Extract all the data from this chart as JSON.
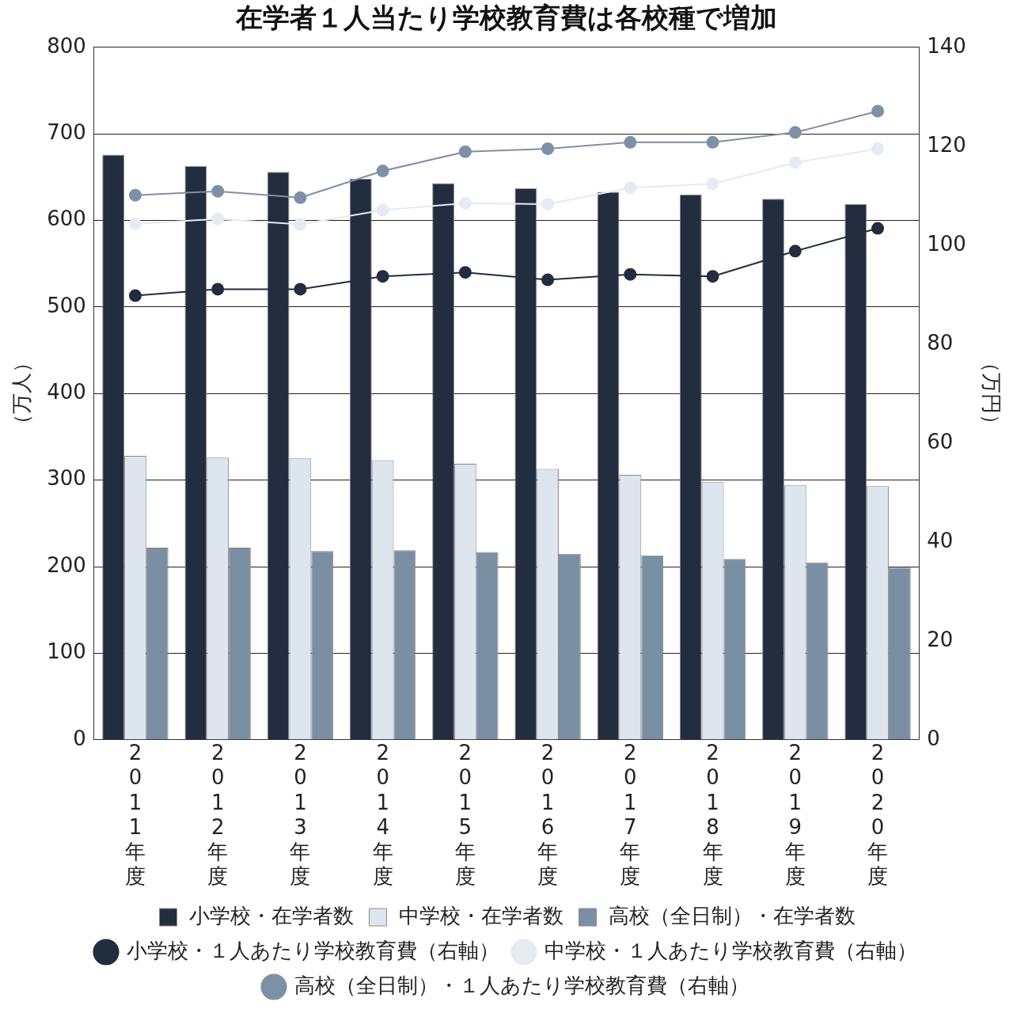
{
  "chart_data": {
    "type": "bar",
    "title": "在学者１人当たり学校教育費は各校種で増加",
    "ylabel": "（万人）",
    "y2label": "（万円）",
    "categories": [
      "2011年度",
      "2012年度",
      "2013年度",
      "2014年度",
      "2015年度",
      "2016年度",
      "2017年度",
      "2018年度",
      "2019年度",
      "2020年度"
    ],
    "series": [
      {
        "name": "小学校・在学者数",
        "color": "#222d3f",
        "values": [
          676,
          663,
          656,
          648,
          643,
          637,
          633,
          630,
          625,
          619
        ]
      },
      {
        "name": "中学校・在学者数",
        "color": "#dde6ef",
        "values": [
          328,
          326,
          325,
          323,
          319,
          313,
          306,
          298,
          294,
          293
        ]
      },
      {
        "name": "高校（全日制）・在学者数",
        "color": "#7b8fa3",
        "values": [
          222,
          222,
          218,
          219,
          217,
          215,
          213,
          209,
          205,
          199
        ]
      },
      {
        "name": "小学校・１人あたり学校教育費（右軸）",
        "type": "line",
        "axis": "y2",
        "color": "#222d3f",
        "values": [
          89.8,
          91.1,
          91.1,
          93.7,
          94.5,
          93.0,
          94.1,
          93.7,
          98.8,
          103.4
        ]
      },
      {
        "name": "中学校・１人あたり学校教育費（右軸）",
        "type": "line",
        "axis": "y2",
        "color": "#e4ebf2",
        "values": [
          104.3,
          105.3,
          104.2,
          107.1,
          108.5,
          108.3,
          111.6,
          112.4,
          116.7,
          119.5
        ]
      },
      {
        "name": "高校（全日制）・１人あたり学校教育費（右軸）",
        "type": "line",
        "axis": "y2",
        "color": "#7d91a6",
        "values": [
          110.1,
          110.9,
          109.6,
          115.0,
          118.9,
          119.5,
          120.8,
          120.8,
          122.8,
          127.1
        ]
      }
    ],
    "ylim": [
      0,
      800
    ],
    "yticks": [
      0,
      100,
      200,
      300,
      400,
      500,
      600,
      700,
      800
    ],
    "y2lim": [
      0,
      140
    ],
    "y2ticks": [
      0,
      20,
      40,
      60,
      80,
      100,
      120,
      140
    ],
    "grid": "y",
    "legend": "bottom",
    "marker": "circle",
    "line_style": "solid"
  }
}
